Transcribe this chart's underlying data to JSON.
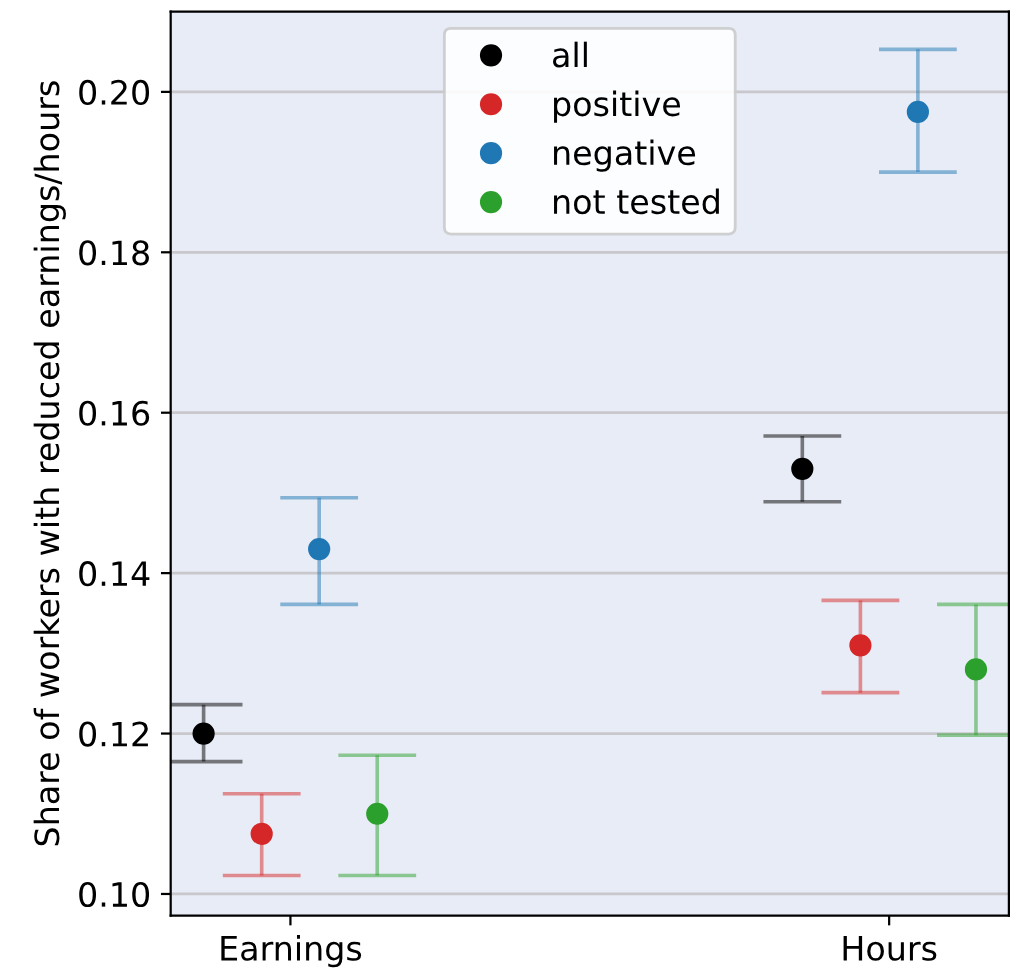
{
  "chart_data": {
    "type": "scatter",
    "ylabel": "Share of workers with reduced earnings/hours",
    "categories": [
      "Earnings",
      "Hours"
    ],
    "ylim": [
      0.0973,
      0.21
    ],
    "yticks": [
      {
        "value": 0.1,
        "label": "0.10"
      },
      0.12,
      0.14,
      0.16,
      0.18,
      {
        "value": 0.2,
        "label": "0.20"
      }
    ],
    "grid": "y",
    "legend": "top",
    "marker": "circle",
    "series": [
      {
        "name": "all",
        "color": "#000000",
        "values": [
          0.12,
          0.153
        ],
        "errors": [
          [
            0.1165,
            0.1236
          ],
          [
            0.1489,
            0.1571
          ]
        ]
      },
      {
        "name": "positive",
        "color": "#d62728",
        "values": [
          0.1075,
          0.131
        ],
        "errors": [
          [
            0.1023,
            0.1125
          ],
          [
            0.1251,
            0.1366
          ]
        ]
      },
      {
        "name": "negative",
        "color": "#1f77b4",
        "values": [
          0.143,
          0.1975
        ],
        "errors": [
          [
            0.1361,
            0.1494
          ],
          [
            0.19,
            0.2053
          ]
        ]
      },
      {
        "name": "not tested",
        "color": "#2ca02c",
        "values": [
          0.11,
          0.128
        ],
        "errors": [
          [
            0.1023,
            0.1173
          ],
          [
            0.1198,
            0.1361
          ]
        ]
      }
    ]
  }
}
